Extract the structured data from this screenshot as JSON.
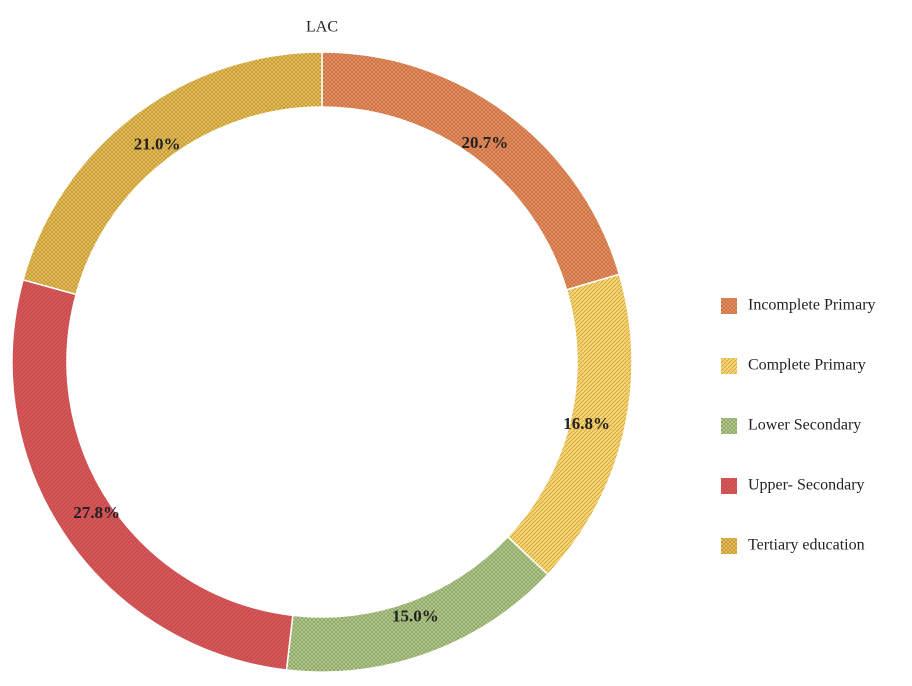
{
  "chart_data": {
    "type": "donut",
    "title": "LAC",
    "categories": [
      "Incomplete Primary",
      "Complete Primary",
      "Lower Secondary",
      "Upper- Secondary",
      "Tertiary education"
    ],
    "values": [
      20.7,
      16.8,
      15.0,
      27.8,
      21.0
    ],
    "value_labels": [
      "20.7%",
      "16.8%",
      "15.0%",
      "27.8%",
      "21.0%"
    ],
    "colors": [
      "#ec8f5e",
      "#f7d56a",
      "#a9d18e",
      "#d9545a",
      "#e9c552"
    ],
    "legend": "right"
  }
}
